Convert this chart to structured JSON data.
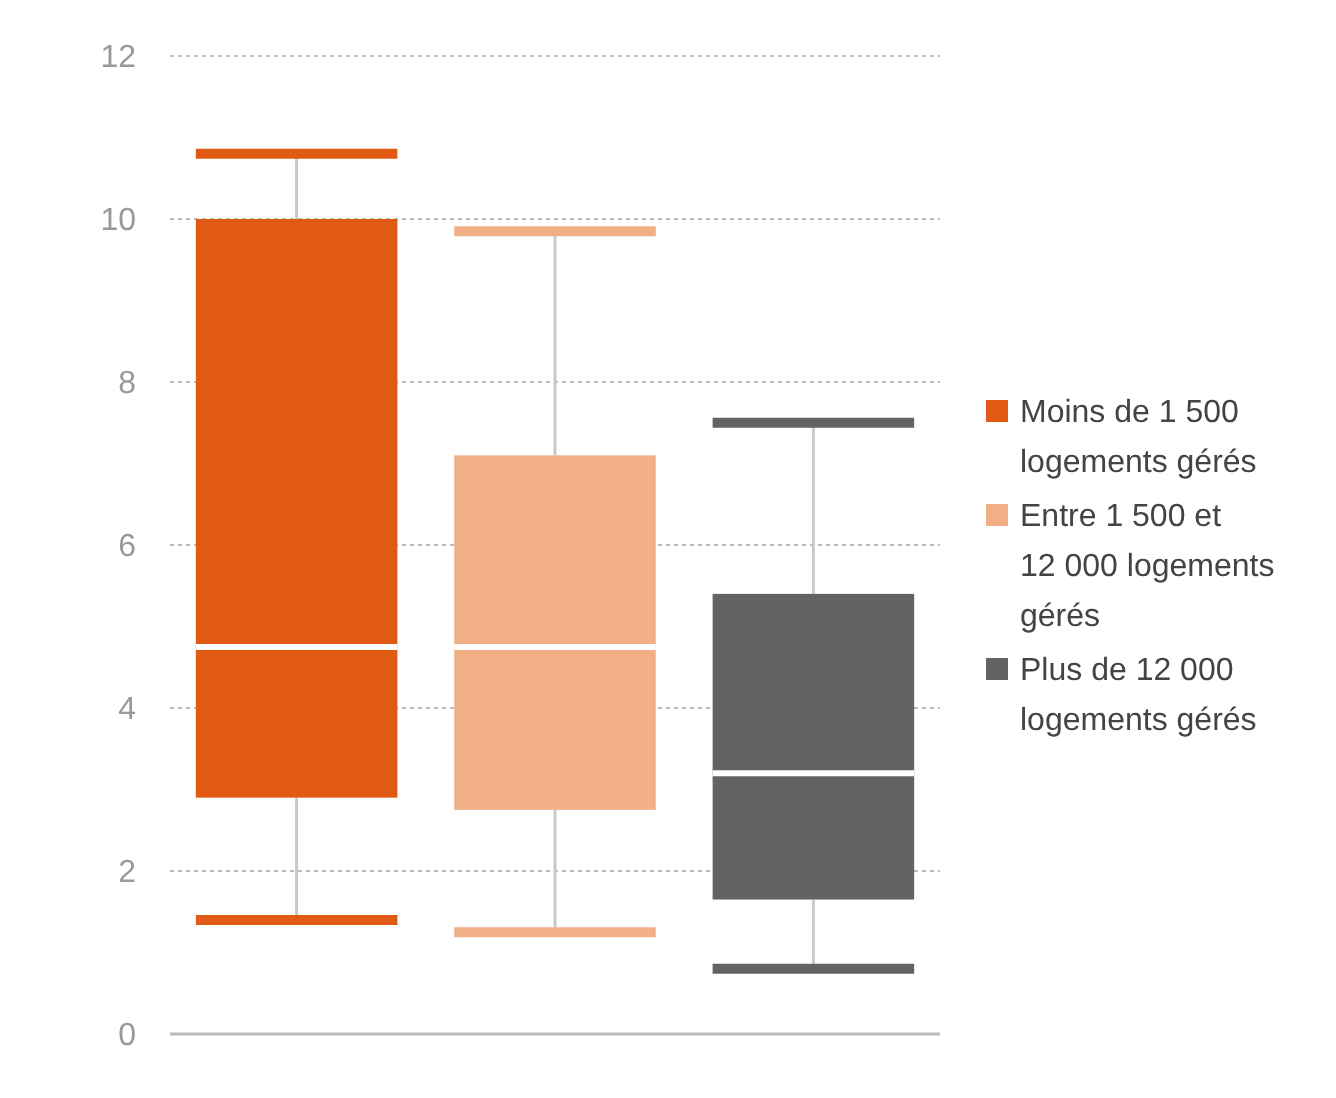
{
  "chart_data": {
    "type": "box",
    "categories": [
      null,
      null,
      null
    ],
    "series": [
      {
        "name": "Moins de 1 500 logements gérés",
        "color": "#e05a14",
        "boxes": [
          {
            "low": 1.4,
            "q1": 2.9,
            "median": 4.75,
            "q3": 10,
            "high": 10.8
          },
          null,
          null
        ]
      },
      {
        "name": "Entre 1 500 et 12 000 logements gérés",
        "color": "#f2af85",
        "boxes": [
          null,
          {
            "low": 1.25,
            "q1": 2.75,
            "median": 4.75,
            "q3": 7.1,
            "high": 9.85
          },
          null
        ]
      },
      {
        "name": "Plus de 12 000 logements gérés",
        "color": "#636363",
        "boxes": [
          null,
          null,
          {
            "low": 0.8,
            "q1": 1.65,
            "median": 3.2,
            "q3": 5.4,
            "high": 7.5
          }
        ]
      }
    ],
    "ylim": [
      0,
      12
    ],
    "yticks": [
      0,
      2,
      4,
      6,
      8,
      10,
      12
    ],
    "grid": "y",
    "legend": "right"
  }
}
